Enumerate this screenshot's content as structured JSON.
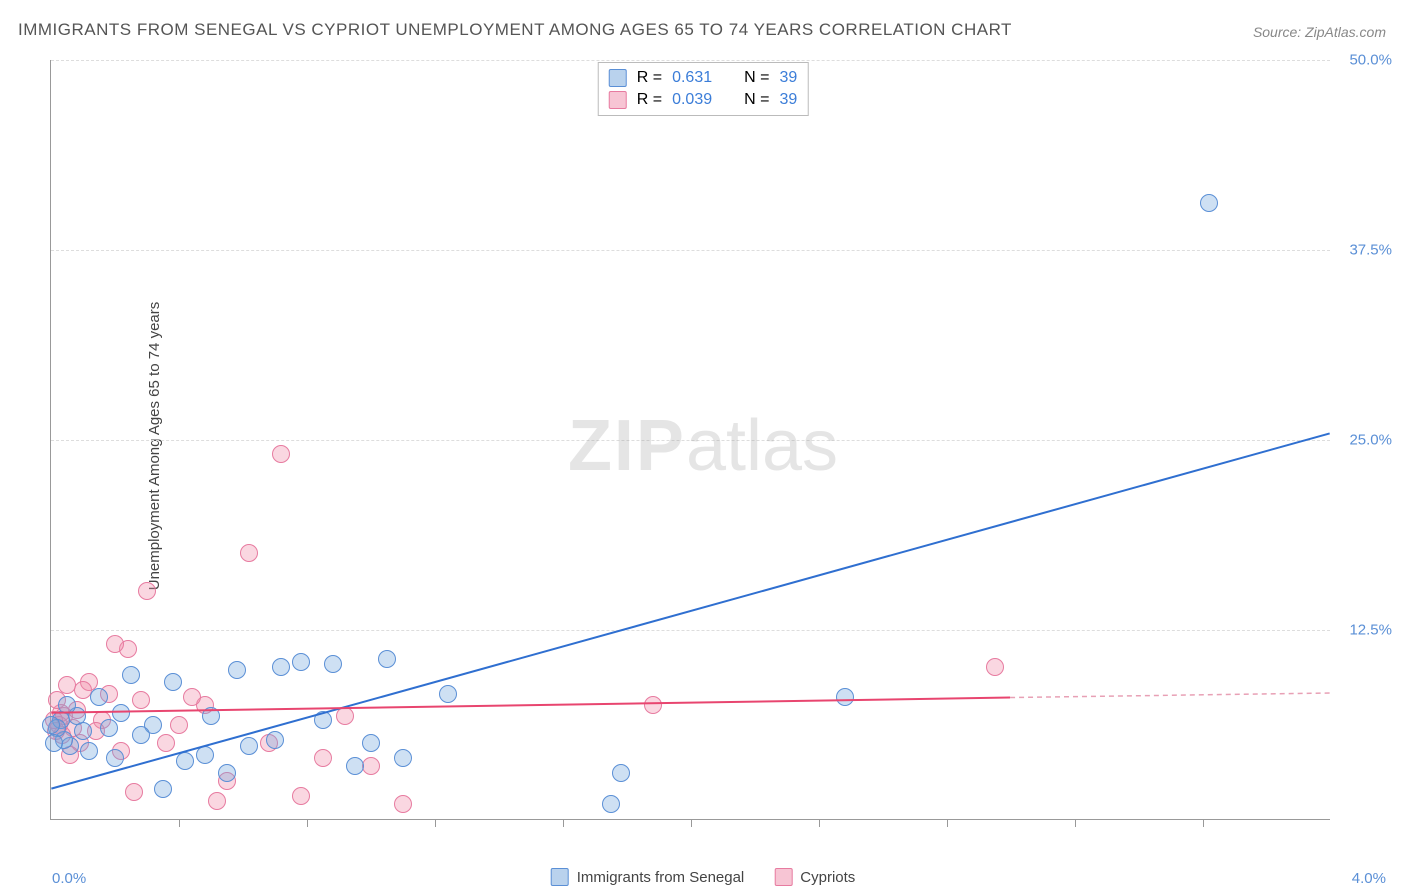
{
  "title": "IMMIGRANTS FROM SENEGAL VS CYPRIOT UNEMPLOYMENT AMONG AGES 65 TO 74 YEARS CORRELATION CHART",
  "source": "Source: ZipAtlas.com",
  "ylabel": "Unemployment Among Ages 65 to 74 years",
  "watermark_a": "ZIP",
  "watermark_b": "atlas",
  "chart": {
    "type": "scatter",
    "xlim": [
      0,
      4.0
    ],
    "ylim": [
      0,
      50.0
    ],
    "x_left_label": "0.0%",
    "x_right_label": "4.0%",
    "yticks": [
      12.5,
      25.0,
      37.5,
      50.0
    ],
    "ytick_labels": [
      "12.5%",
      "25.0%",
      "37.5%",
      "50.0%"
    ],
    "xticks_minor": [
      0.4,
      0.8,
      1.2,
      1.6,
      2.0,
      2.4,
      2.8,
      3.2,
      3.6
    ],
    "grid_color": "#dddddd",
    "axis_color": "#999999",
    "tick_label_color": "#5a8fd6",
    "background_color": "#ffffff",
    "marker_radius": 9,
    "series": {
      "senegal": {
        "label": "Immigrants from Senegal",
        "fill": "rgba(115,165,220,0.35)",
        "stroke": "#5a8fd6",
        "R": 0.631,
        "N": 39,
        "trend": {
          "x1": 0.0,
          "y1": 2.0,
          "x2": 4.0,
          "y2": 25.4,
          "color": "#2f6fd0",
          "width": 2
        },
        "points": [
          [
            3.62,
            40.5
          ],
          [
            2.48,
            8.0
          ],
          [
            1.78,
            3.0
          ],
          [
            1.75,
            1.0
          ],
          [
            1.24,
            8.2
          ],
          [
            1.1,
            4.0
          ],
          [
            1.05,
            10.5
          ],
          [
            1.0,
            5.0
          ],
          [
            0.95,
            3.5
          ],
          [
            0.88,
            10.2
          ],
          [
            0.85,
            6.5
          ],
          [
            0.78,
            10.3
          ],
          [
            0.72,
            10.0
          ],
          [
            0.7,
            5.2
          ],
          [
            0.62,
            4.8
          ],
          [
            0.58,
            9.8
          ],
          [
            0.55,
            3.0
          ],
          [
            0.5,
            6.8
          ],
          [
            0.48,
            4.2
          ],
          [
            0.42,
            3.8
          ],
          [
            0.38,
            9.0
          ],
          [
            0.35,
            2.0
          ],
          [
            0.32,
            6.2
          ],
          [
            0.28,
            5.5
          ],
          [
            0.25,
            9.5
          ],
          [
            0.22,
            7.0
          ],
          [
            0.2,
            4.0
          ],
          [
            0.18,
            6.0
          ],
          [
            0.15,
            8.0
          ],
          [
            0.12,
            4.5
          ],
          [
            0.1,
            5.8
          ],
          [
            0.08,
            6.8
          ],
          [
            0.06,
            4.8
          ],
          [
            0.05,
            7.5
          ],
          [
            0.04,
            5.2
          ],
          [
            0.03,
            6.5
          ],
          [
            0.02,
            6.0
          ],
          [
            0.01,
            5.0
          ],
          [
            0.0,
            6.2
          ]
        ]
      },
      "cypriots": {
        "label": "Cypriots",
        "fill": "rgba(240,140,170,0.35)",
        "stroke": "#e77ba0",
        "R": 0.039,
        "N": 39,
        "trend_solid": {
          "x1": 0.0,
          "y1": 7.0,
          "x2": 3.0,
          "y2": 8.0,
          "color": "#e8456f",
          "width": 2
        },
        "trend_dashed": {
          "x1": 3.0,
          "y1": 8.0,
          "x2": 4.0,
          "y2": 8.3,
          "color": "#e8a0b5",
          "width": 1.5,
          "dash": "5,4"
        },
        "points": [
          [
            2.95,
            10.0
          ],
          [
            1.88,
            7.5
          ],
          [
            1.1,
            1.0
          ],
          [
            1.0,
            3.5
          ],
          [
            0.92,
            6.8
          ],
          [
            0.85,
            4.0
          ],
          [
            0.78,
            1.5
          ],
          [
            0.72,
            24.0
          ],
          [
            0.68,
            5.0
          ],
          [
            0.62,
            17.5
          ],
          [
            0.55,
            2.5
          ],
          [
            0.52,
            1.2
          ],
          [
            0.48,
            7.5
          ],
          [
            0.44,
            8.0
          ],
          [
            0.4,
            6.2
          ],
          [
            0.36,
            5.0
          ],
          [
            0.3,
            15.0
          ],
          [
            0.28,
            7.8
          ],
          [
            0.26,
            1.8
          ],
          [
            0.24,
            11.2
          ],
          [
            0.22,
            4.5
          ],
          [
            0.2,
            11.5
          ],
          [
            0.18,
            8.2
          ],
          [
            0.16,
            6.5
          ],
          [
            0.14,
            5.8
          ],
          [
            0.12,
            9.0
          ],
          [
            0.1,
            8.5
          ],
          [
            0.09,
            5.0
          ],
          [
            0.08,
            7.2
          ],
          [
            0.07,
            6.0
          ],
          [
            0.06,
            4.2
          ],
          [
            0.05,
            8.8
          ],
          [
            0.04,
            6.8
          ],
          [
            0.035,
            5.5
          ],
          [
            0.03,
            7.0
          ],
          [
            0.025,
            6.2
          ],
          [
            0.02,
            7.8
          ],
          [
            0.015,
            5.8
          ],
          [
            0.01,
            6.5
          ]
        ]
      }
    }
  },
  "legend_top": {
    "rows": [
      {
        "swatch": "blue",
        "r_label": "R =",
        "r_val": "0.631",
        "n_label": "N =",
        "n_val": "39"
      },
      {
        "swatch": "pink",
        "r_label": "R =",
        "r_val": "0.039",
        "n_label": "N =",
        "n_val": "39"
      }
    ]
  },
  "legend_bottom": {
    "items": [
      {
        "swatch": "blue",
        "label": "Immigrants from Senegal"
      },
      {
        "swatch": "pink",
        "label": "Cypriots"
      }
    ]
  }
}
